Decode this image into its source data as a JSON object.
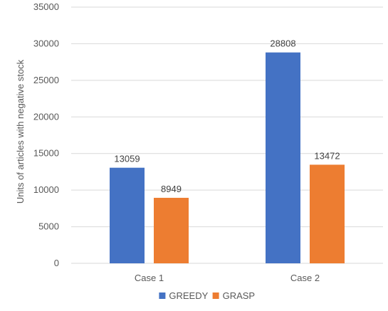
{
  "chart_data": {
    "type": "bar",
    "categories": [
      "Case 1",
      "Case 2"
    ],
    "series": [
      {
        "name": "GREEDY",
        "values": [
          13059,
          28808
        ],
        "color": "#4472C4"
      },
      {
        "name": "GRASP",
        "values": [
          8949,
          13472
        ],
        "color": "#ED7D31"
      }
    ],
    "ylabel": "Units of articles with negative stock",
    "ylim": [
      0,
      35000
    ],
    "yticks": [
      0,
      5000,
      10000,
      15000,
      20000,
      25000,
      30000,
      35000
    ],
    "grid": true,
    "data_labels": true,
    "legend": "bottom",
    "gridline_color": "#d9d9d9"
  }
}
